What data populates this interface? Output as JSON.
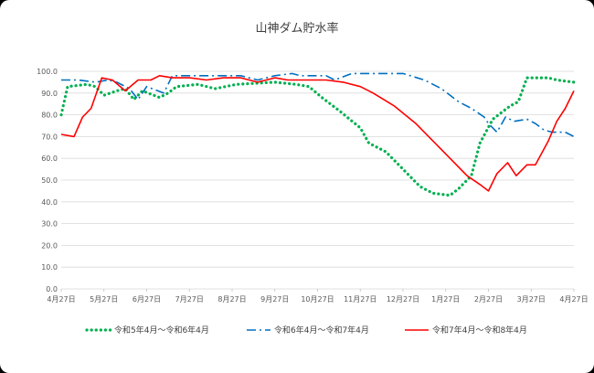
{
  "chart_data": {
    "type": "line",
    "title": "山神ダム貯水率",
    "xlabel": "",
    "ylabel": "",
    "ylim": [
      0,
      100
    ],
    "yticks": [
      "0.0",
      "10.0",
      "20.0",
      "30.0",
      "40.0",
      "50.0",
      "60.0",
      "70.0",
      "80.0",
      "90.0",
      "100.0"
    ],
    "x_categories": [
      "4月27日",
      "5月27日",
      "6月27日",
      "7月27日",
      "8月27日",
      "9月27日",
      "10月27日",
      "11月27日",
      "12月27日",
      "1月27日",
      "2月27日",
      "3月27日",
      "4月27日"
    ],
    "grid": true,
    "legend_position": "bottom",
    "series": [
      {
        "name": "令和5年4月～令和6年4月",
        "color": "#00b050",
        "style": "dotted",
        "points": [
          [
            0,
            80
          ],
          [
            0.15,
            93
          ],
          [
            0.6,
            94
          ],
          [
            0.8,
            93
          ],
          [
            1.0,
            89
          ],
          [
            1.3,
            91
          ],
          [
            1.5,
            92
          ],
          [
            1.7,
            87
          ],
          [
            1.9,
            91
          ],
          [
            2.3,
            88
          ],
          [
            2.5,
            90
          ],
          [
            2.7,
            93
          ],
          [
            3.2,
            94
          ],
          [
            3.6,
            92
          ],
          [
            4.1,
            94
          ],
          [
            5.0,
            95
          ],
          [
            5.5,
            94
          ],
          [
            5.8,
            93
          ],
          [
            6.1,
            88
          ],
          [
            6.5,
            82
          ],
          [
            7.0,
            74
          ],
          [
            7.2,
            67
          ],
          [
            7.6,
            63
          ],
          [
            8.0,
            55
          ],
          [
            8.4,
            47
          ],
          [
            8.7,
            44
          ],
          [
            9.1,
            43
          ],
          [
            9.3,
            46
          ],
          [
            9.6,
            52
          ],
          [
            9.8,
            67
          ],
          [
            10.1,
            78
          ],
          [
            10.5,
            84
          ],
          [
            10.7,
            86
          ],
          [
            10.9,
            97
          ],
          [
            11.4,
            97
          ],
          [
            11.6,
            96
          ],
          [
            12,
            95
          ]
        ]
      },
      {
        "name": "令和6年4月～令和7年4月",
        "color": "#0070c0",
        "style": "dashdot",
        "points": [
          [
            0,
            96
          ],
          [
            0.4,
            96
          ],
          [
            0.8,
            95
          ],
          [
            1.1,
            96
          ],
          [
            1.3,
            95
          ],
          [
            1.6,
            92
          ],
          [
            1.8,
            87
          ],
          [
            2.0,
            93
          ],
          [
            2.4,
            90
          ],
          [
            2.6,
            98
          ],
          [
            3.5,
            98
          ],
          [
            4.2,
            98
          ],
          [
            4.6,
            96
          ],
          [
            5.0,
            98
          ],
          [
            5.4,
            99
          ],
          [
            5.6,
            98
          ],
          [
            6.2,
            98
          ],
          [
            6.4,
            96
          ],
          [
            6.8,
            99
          ],
          [
            7.2,
            99
          ],
          [
            7.5,
            99
          ],
          [
            8.0,
            99
          ],
          [
            8.5,
            96
          ],
          [
            8.9,
            92
          ],
          [
            9.3,
            86
          ],
          [
            9.6,
            83
          ],
          [
            9.9,
            79
          ],
          [
            10.0,
            76
          ],
          [
            10.2,
            72
          ],
          [
            10.4,
            79
          ],
          [
            10.6,
            77
          ],
          [
            10.9,
            78
          ],
          [
            11.1,
            76
          ],
          [
            11.3,
            73
          ],
          [
            11.5,
            72
          ],
          [
            11.8,
            72
          ],
          [
            12,
            70
          ]
        ]
      },
      {
        "name": "令和7年4月～令和8年4月",
        "color": "#ff0000",
        "style": "solid",
        "points": [
          [
            0,
            71
          ],
          [
            0.3,
            70
          ],
          [
            0.5,
            79
          ],
          [
            0.7,
            83
          ],
          [
            0.95,
            97
          ],
          [
            1.2,
            96
          ],
          [
            1.5,
            91
          ],
          [
            1.8,
            96
          ],
          [
            2.1,
            96
          ],
          [
            2.3,
            98
          ],
          [
            2.6,
            97
          ],
          [
            3.0,
            97
          ],
          [
            3.4,
            96
          ],
          [
            3.8,
            97
          ],
          [
            4.2,
            97
          ],
          [
            4.4,
            96
          ],
          [
            4.6,
            95
          ],
          [
            5.0,
            97
          ],
          [
            5.3,
            96
          ],
          [
            5.8,
            96
          ],
          [
            6.2,
            96
          ],
          [
            6.6,
            95
          ],
          [
            7.0,
            93
          ],
          [
            7.3,
            90
          ],
          [
            7.8,
            84
          ],
          [
            8.3,
            76
          ],
          [
            8.6,
            70
          ],
          [
            9.0,
            62
          ],
          [
            9.3,
            56
          ],
          [
            9.5,
            52
          ],
          [
            9.8,
            48
          ],
          [
            10.0,
            45
          ],
          [
            10.2,
            53
          ],
          [
            10.45,
            58
          ],
          [
            10.65,
            52
          ],
          [
            10.9,
            57
          ],
          [
            11.1,
            57
          ],
          [
            11.4,
            68
          ],
          [
            11.6,
            77
          ],
          [
            11.8,
            83
          ],
          [
            12,
            91
          ]
        ]
      }
    ]
  }
}
